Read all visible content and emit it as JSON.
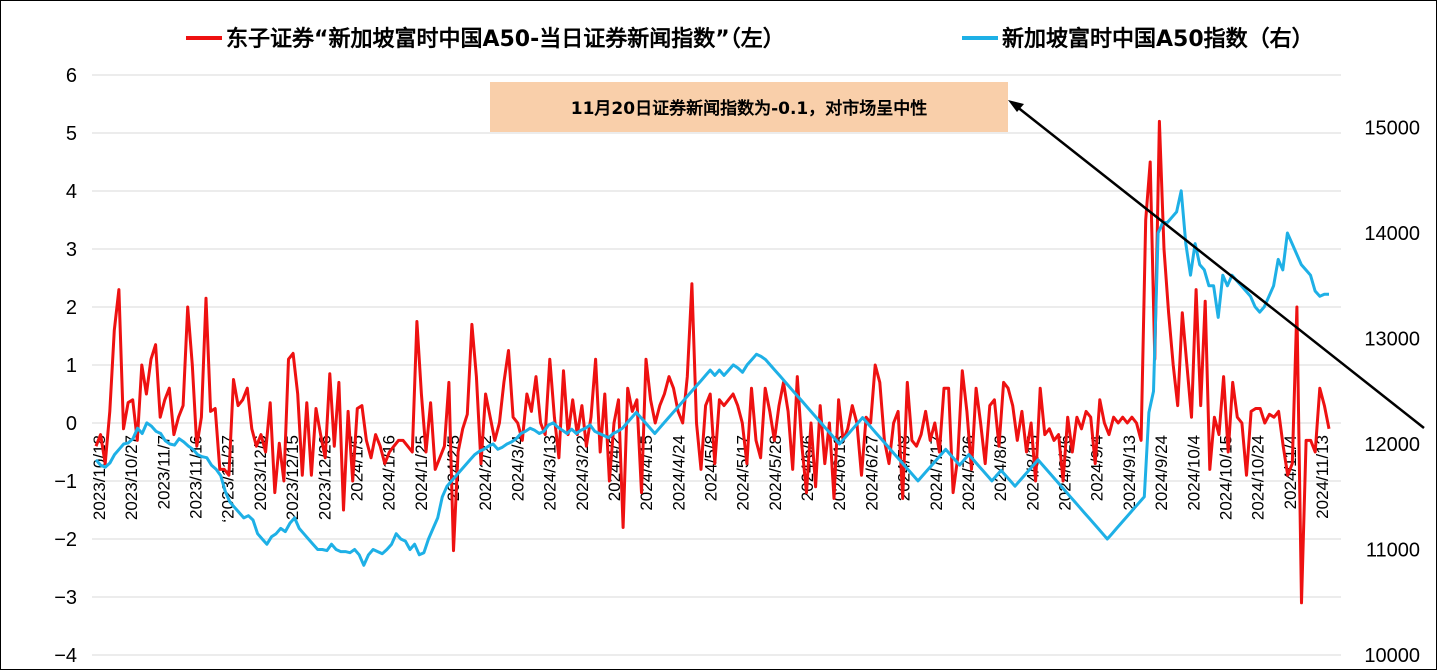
{
  "chart_data": {
    "type": "line",
    "legend_position": "top",
    "grid": true,
    "left_axis": {
      "min": -4,
      "max": 6,
      "ticks": [
        -4,
        -3,
        -2,
        -1,
        0,
        1,
        2,
        3,
        4,
        5,
        6
      ],
      "tick_labels": [
        "−4",
        "−3",
        "−2",
        "−1",
        "0",
        "1",
        "2",
        "3",
        "4",
        "5",
        "6"
      ]
    },
    "right_axis": {
      "min": 10000,
      "max": 15500,
      "ticks": [
        10000,
        11000,
        12000,
        13000,
        14000,
        15000
      ],
      "tick_labels": [
        "10000",
        "11000",
        "12000",
        "13000",
        "14000",
        "15000"
      ]
    },
    "x_tick_labels": [
      "2023/10/18",
      "2023/10/27",
      "2023/11/7",
      "2023/11/16",
      "‘2023/11/27",
      "2023/12/6",
      "2023/12/15",
      "2023/12/26",
      "2024/1/5",
      "2024/1/16",
      "2024/1/25",
      "2024/2/5",
      "2024/2/22",
      "2024/3/4",
      "2024/3/13",
      "2024/3/22",
      "2024/4/2",
      "2024/4/15",
      "2024/4/24",
      "2024/5/8",
      "2024/5/17",
      "2024/5/28",
      "2024/6/6",
      "2024/6/18",
      "2024/6/27",
      "2024/7/8",
      "2024/7/17",
      "2024/7/26",
      "2024/8/6",
      "2024/8/15",
      "2024/8/26",
      "2024/9/4",
      "2024/9/13",
      "2024/9/24",
      "2024/10/4",
      "2024/10/15",
      "2024/10/24",
      "2024/11/4",
      "2024/11/13"
    ],
    "series": [
      {
        "name": "东子证券“新加坡富时中国A50-当日证券新闻指数”（左）",
        "axis": "left",
        "color": "#ee1111",
        "values": [
          -0.4,
          -0.2,
          -0.7,
          0.2,
          1.6,
          2.3,
          -0.1,
          0.35,
          0.4,
          -0.3,
          1.0,
          0.5,
          1.1,
          1.35,
          0.1,
          0.4,
          0.6,
          -0.2,
          0.1,
          0.3,
          2.0,
          1.0,
          -0.4,
          0.1,
          2.15,
          0.2,
          0.25,
          -0.8,
          -0.8,
          -0.9,
          0.75,
          0.3,
          0.4,
          0.6,
          -0.1,
          -0.4,
          -0.2,
          -0.5,
          0.35,
          -1.2,
          -0.35,
          -1.0,
          1.1,
          1.2,
          0.5,
          -0.9,
          0.35,
          -0.9,
          0.25,
          -0.2,
          -0.6,
          0.85,
          -0.4,
          0.7,
          -1.5,
          0.2,
          -1.0,
          0.25,
          0.3,
          -0.3,
          -0.6,
          -0.2,
          -0.4,
          -0.7,
          -0.5,
          -0.4,
          -0.3,
          -0.3,
          -0.4,
          -0.5,
          1.75,
          0.5,
          -0.5,
          0.35,
          -0.8,
          -0.6,
          -0.4,
          0.7,
          -2.2,
          -0.5,
          -0.1,
          0.15,
          1.7,
          0.8,
          -0.7,
          0.5,
          0.1,
          -0.3,
          0.0,
          0.7,
          1.25,
          0.1,
          0.0,
          -0.3,
          0.5,
          0.2,
          0.8,
          0.0,
          -0.2,
          1.1,
          0.1,
          -0.6,
          0.9,
          -0.2,
          0.4,
          -0.2,
          0.3,
          -0.4,
          0.1,
          1.1,
          -0.5,
          0.5,
          -1.0,
          0.0,
          0.4,
          -1.8,
          0.6,
          0.2,
          0.4,
          -1.2,
          1.1,
          0.4,
          0.0,
          0.3,
          0.5,
          0.8,
          0.6,
          0.2,
          0.0,
          0.8,
          2.4,
          0.0,
          -0.8,
          0.3,
          0.5,
          -0.7,
          0.4,
          0.3,
          0.4,
          0.5,
          0.3,
          0.0,
          -0.7,
          0.6,
          -0.3,
          -0.6,
          0.6,
          0.2,
          -0.3,
          0.3,
          0.7,
          0.2,
          -0.8,
          0.8,
          -0.4,
          -1.2,
          0.0,
          -1.1,
          0.3,
          -0.7,
          0.0,
          -1.3,
          0.4,
          -0.3,
          -0.1,
          0.3,
          0.0,
          -0.9,
          0.1,
          0.0,
          1.0,
          0.7,
          -0.3,
          -0.7,
          0.0,
          0.2,
          -1.3,
          0.7,
          -0.3,
          -0.4,
          -0.2,
          0.2,
          -0.3,
          0.0,
          -0.5,
          0.6,
          0.6,
          -1.2,
          -0.6,
          0.9,
          0.2,
          -0.8,
          0.6,
          0.0,
          -0.7,
          0.3,
          0.4,
          -0.4,
          0.7,
          0.6,
          0.3,
          -0.3,
          0.2,
          -0.5,
          0.0,
          -1.0,
          0.6,
          -0.2,
          -0.1,
          -0.3,
          -0.2,
          -1.0,
          0.1,
          -0.5,
          0.1,
          -0.1,
          0.2,
          0.1,
          -0.7,
          0.4,
          0.0,
          -0.2,
          0.1,
          0.0,
          0.1,
          0.0,
          0.1,
          0.0,
          -0.3,
          3.5,
          4.5,
          1.1,
          5.2,
          3.0,
          1.9,
          1.0,
          0.3,
          1.9,
          1.0,
          0.1,
          2.3,
          0.3,
          2.1,
          -0.8,
          0.1,
          -0.2,
          0.8,
          -0.5,
          0.7,
          0.1,
          0.0,
          -0.9,
          0.2,
          0.25,
          0.25,
          0.0,
          0.15,
          0.1,
          0.2,
          -0.4,
          -0.9,
          -0.7,
          2.0,
          -3.1,
          -0.3,
          -0.3,
          -0.5,
          0.6,
          0.3,
          -0.1
        ]
      },
      {
        "name": "新加坡富时中国A50指数（右）",
        "axis": "right",
        "color": "#1eb0e6",
        "values": [
          11850,
          11800,
          11780,
          11820,
          11900,
          11950,
          12000,
          12010,
          12050,
          12150,
          12100,
          12200,
          12170,
          12120,
          12100,
          12030,
          12000,
          11990,
          12050,
          12020,
          11980,
          11950,
          11900,
          11880,
          11870,
          11800,
          11760,
          11700,
          11550,
          11450,
          11400,
          11350,
          11300,
          11320,
          11280,
          11150,
          11100,
          11050,
          11120,
          11150,
          11200,
          11170,
          11250,
          11300,
          11200,
          11150,
          11100,
          11050,
          11000,
          11000,
          10990,
          11050,
          11000,
          10980,
          10980,
          10970,
          11000,
          10950,
          10850,
          10950,
          11000,
          10980,
          10960,
          11000,
          11050,
          11150,
          11100,
          11080,
          11000,
          11050,
          10950,
          10970,
          11100,
          11200,
          11300,
          11500,
          11600,
          11650,
          11700,
          11750,
          11800,
          11850,
          11900,
          11930,
          11950,
          11980,
          12000,
          11950,
          11970,
          12000,
          12020,
          12050,
          12100,
          12120,
          12150,
          12130,
          12100,
          12120,
          12180,
          12200,
          12160,
          12130,
          12100,
          12140,
          12100,
          12130,
          12150,
          12180,
          12120,
          12100,
          12080,
          12060,
          12100,
          12120,
          12150,
          12200,
          12250,
          12300,
          12250,
          12200,
          12150,
          12100,
          12150,
          12200,
          12250,
          12300,
          12350,
          12400,
          12450,
          12500,
          12550,
          12600,
          12650,
          12700,
          12650,
          12700,
          12650,
          12700,
          12750,
          12720,
          12680,
          12750,
          12800,
          12850,
          12830,
          12800,
          12750,
          12700,
          12650,
          12600,
          12550,
          12500,
          12450,
          12400,
          12350,
          12300,
          12250,
          12200,
          12150,
          12100,
          12050,
          12000,
          12050,
          12100,
          12150,
          12200,
          12250,
          12200,
          12150,
          12100,
          12050,
          12000,
          11950,
          11900,
          11850,
          11800,
          11750,
          11700,
          11650,
          11700,
          11750,
          11800,
          11850,
          11900,
          11950,
          11900,
          11850,
          11800,
          11850,
          11900,
          11850,
          11800,
          11750,
          11700,
          11650,
          11700,
          11750,
          11700,
          11650,
          11600,
          11650,
          11700,
          11750,
          11800,
          11850,
          11800,
          11750,
          11700,
          11650,
          11600,
          11550,
          11500,
          11450,
          11400,
          11350,
          11300,
          11250,
          11200,
          11150,
          11100,
          11150,
          11200,
          11250,
          11300,
          11350,
          11400,
          11450,
          11500,
          12300,
          12500,
          14000,
          14100,
          14100,
          14150,
          14200,
          14400,
          13900,
          13600,
          13900,
          13700,
          13650,
          13500,
          13500,
          13200,
          13600,
          13500,
          13600,
          13550,
          13500,
          13450,
          13400,
          13300,
          13250,
          13300,
          13400,
          13500,
          13750,
          13650,
          14000,
          13900,
          13800,
          13700,
          13650,
          13600,
          13450,
          13400,
          13420,
          13420
        ]
      }
    ],
    "annotation": {
      "text": "11月20日证券新闻指数为-0.1，对市场呈中性"
    }
  }
}
